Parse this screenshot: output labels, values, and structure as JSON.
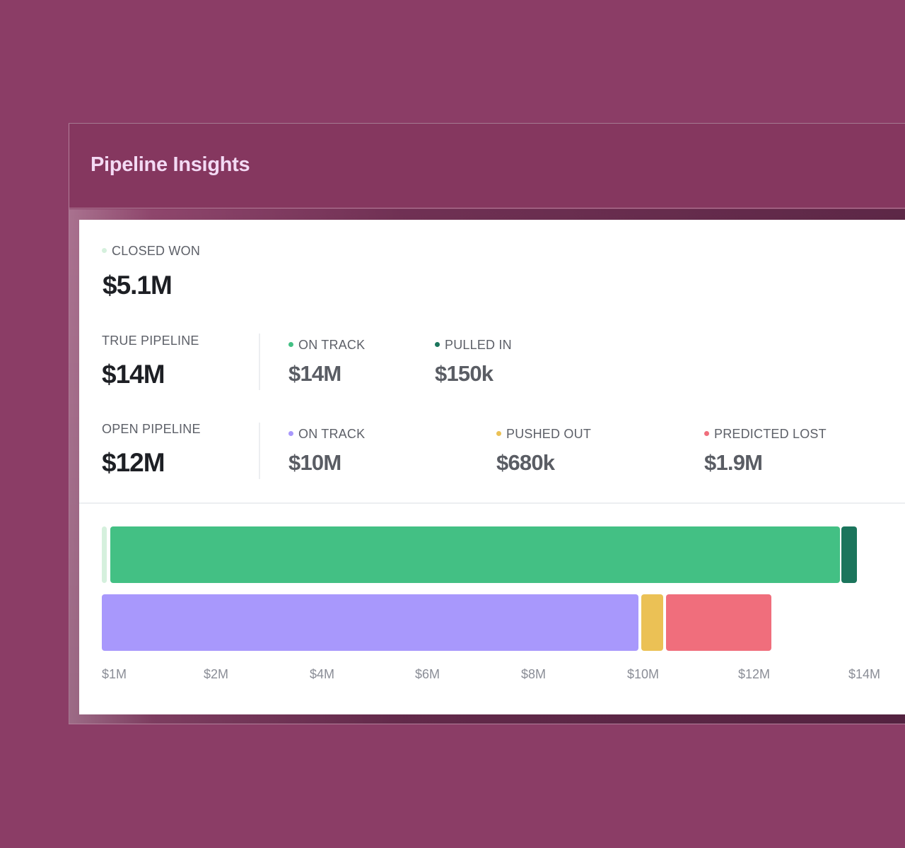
{
  "header": {
    "title": "Pipeline Insights"
  },
  "closed_won": {
    "label": "CLOSED WON",
    "value": "$5.1M",
    "dot_color": "#d5f0dd"
  },
  "true_pipeline": {
    "label": "TRUE PIPELINE",
    "value": "$14M",
    "items": [
      {
        "label": "ON TRACK",
        "value": "$14M",
        "dot_color": "#43c084"
      },
      {
        "label": "PULLED IN",
        "value": "$150k",
        "dot_color": "#1b755c"
      }
    ]
  },
  "open_pipeline": {
    "label": "OPEN PIPELINE",
    "value": "$12M",
    "items": [
      {
        "label": "ON TRACK",
        "value": "$10M",
        "dot_color": "#a898fc"
      },
      {
        "label": "PUSHED OUT",
        "value": "$680k",
        "dot_color": "#ebc155"
      },
      {
        "label": "PREDICTED LOST",
        "value": "$1.9M",
        "dot_color": "#f06e7c"
      }
    ]
  },
  "chart_data": {
    "type": "bar",
    "orientation": "horizontal-stacked",
    "title": "",
    "xlabel": "",
    "ylabel": "",
    "tick_labels": [
      "$1M",
      "$2M",
      "$4M",
      "$6M",
      "$8M",
      "$10M",
      "$12M",
      "$14M"
    ],
    "tick_values": [
      1,
      2,
      4,
      6,
      8,
      10,
      12,
      14
    ],
    "xlim": [
      1,
      14
    ],
    "grid": false,
    "series": [
      {
        "name": "True pipeline",
        "segments": [
          {
            "name": "Closed won",
            "start": 1.0,
            "end": 1.05,
            "color": "#d5f0dd"
          },
          {
            "name": "On track",
            "start": 1.08,
            "end": 13.84,
            "color": "#43c084"
          },
          {
            "name": "Pulled in",
            "start": 13.87,
            "end": 14.15,
            "color": "#1b755c"
          }
        ]
      },
      {
        "name": "Open pipeline",
        "segments": [
          {
            "name": "On track",
            "start": 1.0,
            "end": 10.2,
            "color": "#a898fc"
          },
          {
            "name": "Pushed out",
            "start": 10.25,
            "end": 10.65,
            "color": "#ebc155"
          },
          {
            "name": "Predicted lost",
            "start": 10.7,
            "end": 12.6,
            "color": "#f06e7c"
          }
        ]
      }
    ]
  }
}
